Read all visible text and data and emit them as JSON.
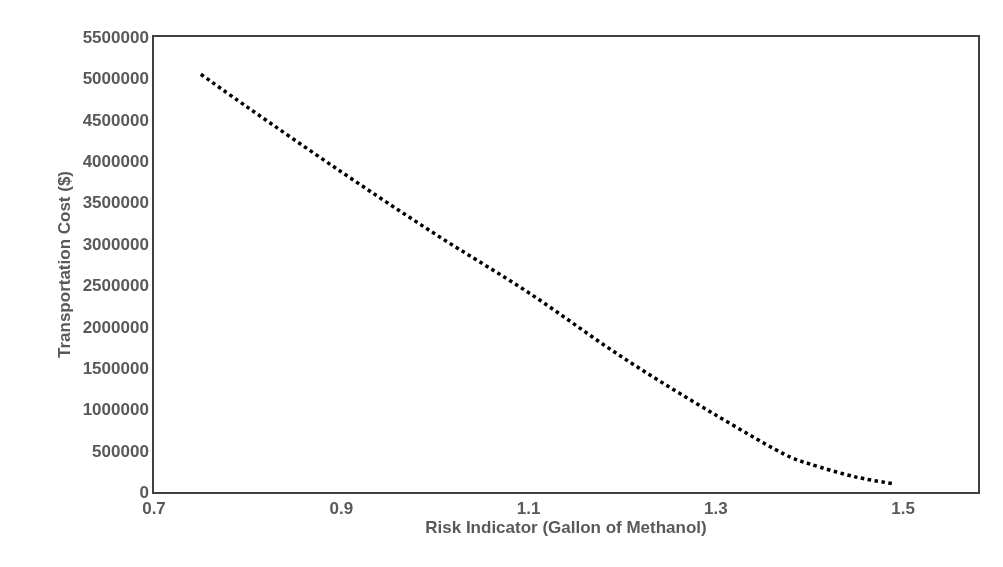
{
  "chart_data": {
    "type": "line",
    "xlabel": "Risk Indicator (Gallon of Methanol)",
    "ylabel": "Transportation Cost ($)",
    "x": [
      0.75,
      0.8,
      0.9,
      1.0,
      1.1,
      1.2,
      1.3,
      1.38,
      1.4,
      1.45,
      1.49
    ],
    "series": [
      {
        "color": "#000000",
        "values": [
          5050000,
          4650000,
          3870000,
          3120000,
          2410000,
          1630000,
          930000,
          420000,
          340000,
          180000,
          100000
        ]
      }
    ],
    "xlim": [
      0.7,
      1.58
    ],
    "xticks": [
      0.7,
      0.9,
      1.1,
      1.3,
      1.5
    ],
    "ylim": [
      0,
      5500000
    ],
    "yticks": [
      0,
      500000,
      1000000,
      1500000,
      2000000,
      2500000,
      3000000,
      3500000,
      4000000,
      4500000,
      5000000,
      5500000
    ],
    "legend": false,
    "marker": "none",
    "line_style": "dotted"
  }
}
